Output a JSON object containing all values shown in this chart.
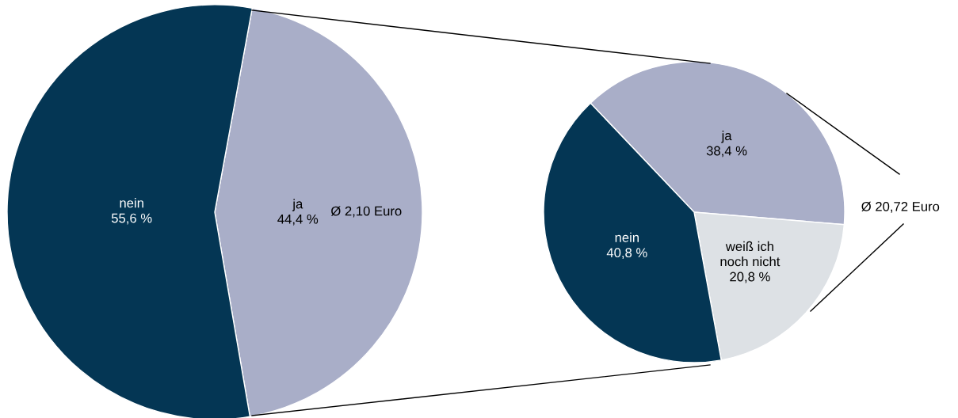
{
  "chart_data": [
    {
      "type": "pie",
      "categories": [
        "ja",
        "nein"
      ],
      "values": [
        44.4,
        55.6
      ],
      "colors": [
        "#a9aec8",
        "#043654"
      ],
      "value_labels": [
        "44,4 %",
        "55,6 %"
      ],
      "annotations": [
        "Ø 2,10 Euro"
      ]
    },
    {
      "type": "pie",
      "categories": [
        "ja",
        "weiß ich\nnoch nicht",
        "nein"
      ],
      "values": [
        38.4,
        20.8,
        40.8
      ],
      "colors": [
        "#a9aec8",
        "#dde1e5",
        "#043654"
      ],
      "value_labels": [
        "38,4 %",
        "20,8 %",
        "40,8 %"
      ],
      "annotations": [
        "Ø 20,72 Euro"
      ]
    }
  ]
}
